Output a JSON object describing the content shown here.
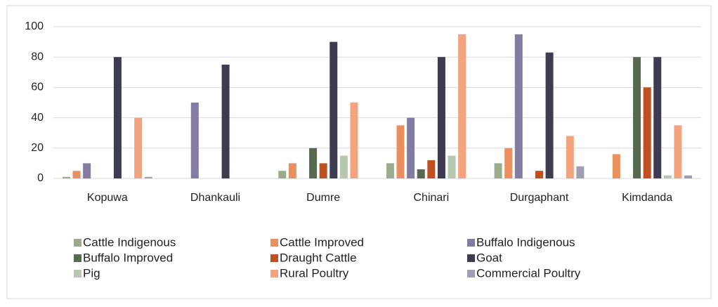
{
  "chart_data": {
    "type": "bar",
    "categories": [
      "Kopuwa",
      "Dhankauli",
      "Dumre",
      "Chinari",
      "Durgaphant",
      "Kimdanda"
    ],
    "series": [
      {
        "name": "Cattle Indigenous",
        "color": "#9bac8c",
        "values": [
          1,
          0,
          5,
          10,
          10,
          0
        ]
      },
      {
        "name": "Cattle Improved",
        "color": "#ec8f5e",
        "values": [
          5,
          0,
          10,
          35,
          20,
          16
        ]
      },
      {
        "name": "Buffalo Indigenous",
        "color": "#837ba1",
        "values": [
          10,
          50,
          0,
          40,
          95,
          0
        ]
      },
      {
        "name": "Buffalo Improved",
        "color": "#566b4e",
        "values": [
          0,
          0,
          20,
          6,
          0,
          80
        ]
      },
      {
        "name": "Draught Cattle",
        "color": "#c0501f",
        "values": [
          0,
          0,
          10,
          12,
          5,
          60
        ]
      },
      {
        "name": "Goat",
        "color": "#3e3c50",
        "values": [
          80,
          75,
          90,
          80,
          83,
          80
        ]
      },
      {
        "name": "Pig",
        "color": "#b6c8ae",
        "values": [
          0,
          0,
          15,
          15,
          0,
          2
        ]
      },
      {
        "name": "Rural Poultry",
        "color": "#f4a37f",
        "values": [
          40,
          0,
          50,
          95,
          28,
          35
        ]
      },
      {
        "name": "Commercial Poultry",
        "color": "#a19db7",
        "values": [
          1,
          0,
          0,
          0,
          8,
          2
        ]
      }
    ],
    "ylim": [
      0,
      100
    ],
    "yticks": [
      0,
      20,
      40,
      60,
      80,
      100
    ],
    "grid": true
  }
}
